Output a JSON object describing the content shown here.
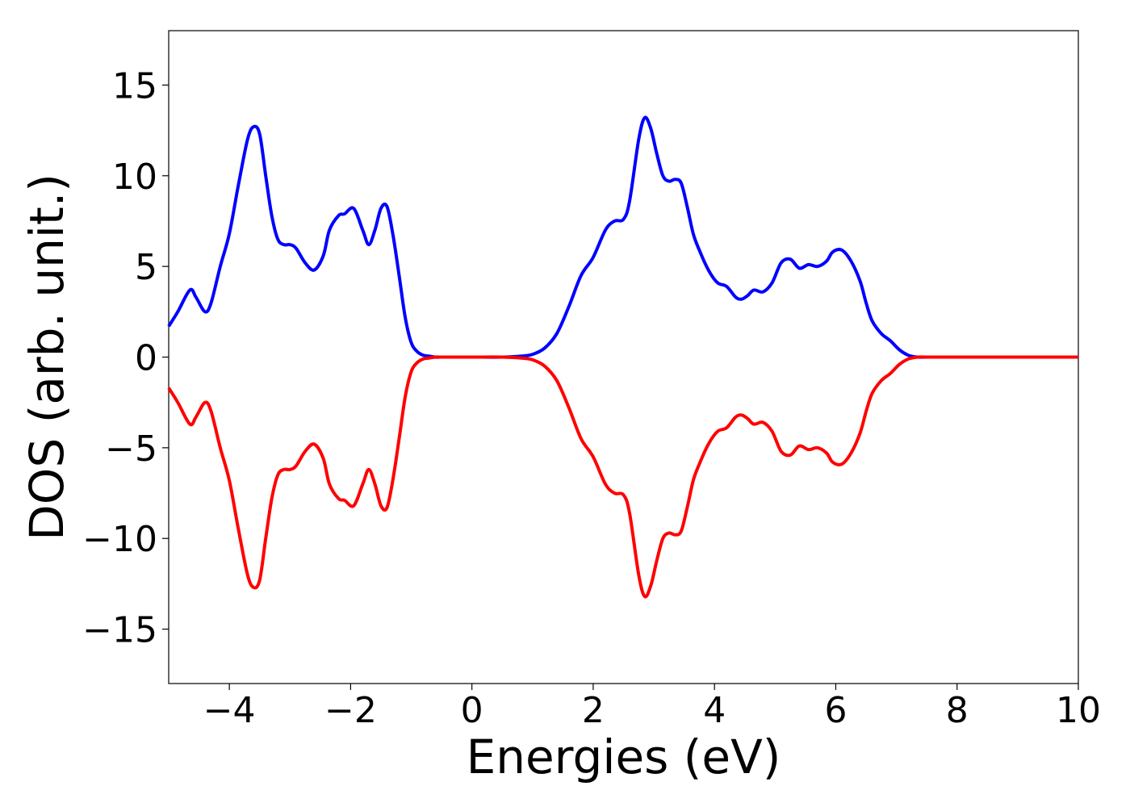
{
  "chart_data": {
    "type": "line",
    "title": "",
    "xlabel": "Energies (eV)",
    "ylabel": "DOS (arb. unit.)",
    "xlim": [
      -5,
      10
    ],
    "ylim": [
      -18,
      18
    ],
    "xticks": [
      -4,
      -2,
      0,
      2,
      4,
      6,
      8,
      10
    ],
    "xtick_labels": [
      "−4",
      "−2",
      "0",
      "2",
      "4",
      "6",
      "8",
      "10"
    ],
    "yticks": [
      -15,
      -10,
      -5,
      0,
      5,
      10,
      15
    ],
    "ytick_labels": [
      "−15",
      "−10",
      "−5",
      "0",
      "5",
      "10",
      "15"
    ],
    "grid": false,
    "legend": "none",
    "series": [
      {
        "color": "#0000ff",
        "x": [
          -5.0,
          -4.85,
          -4.65,
          -4.55,
          -4.4,
          -4.3,
          -4.15,
          -4.0,
          -3.85,
          -3.7,
          -3.6,
          -3.5,
          -3.4,
          -3.3,
          -3.2,
          -3.1,
          -3.0,
          -2.9,
          -2.75,
          -2.6,
          -2.45,
          -2.35,
          -2.2,
          -2.1,
          -1.95,
          -1.8,
          -1.7,
          -1.6,
          -1.5,
          -1.4,
          -1.3,
          -1.2,
          -1.1,
          -1.0,
          -0.9,
          -0.8,
          -0.7,
          -0.6,
          -0.5,
          0.0,
          0.5,
          0.8,
          1.0,
          1.2,
          1.4,
          1.6,
          1.8,
          2.0,
          2.2,
          2.35,
          2.5,
          2.6,
          2.75,
          2.85,
          2.95,
          3.05,
          3.15,
          3.25,
          3.35,
          3.45,
          3.55,
          3.65,
          3.75,
          3.9,
          4.05,
          4.2,
          4.35,
          4.45,
          4.55,
          4.65,
          4.8,
          4.95,
          5.1,
          5.25,
          5.4,
          5.55,
          5.7,
          5.85,
          5.95,
          6.1,
          6.25,
          6.4,
          6.5,
          6.6,
          6.75,
          6.9,
          7.05,
          7.2,
          7.35,
          7.5,
          8.0,
          9.0,
          10.0
        ],
        "y": [
          1.7,
          2.5,
          3.7,
          3.3,
          2.5,
          3.0,
          5.0,
          6.8,
          9.5,
          12.0,
          12.7,
          12.3,
          10.0,
          7.8,
          6.5,
          6.2,
          6.2,
          6.0,
          5.2,
          4.8,
          5.6,
          7.0,
          7.8,
          7.9,
          8.2,
          7.0,
          6.2,
          7.0,
          8.2,
          8.3,
          6.7,
          4.5,
          2.2,
          0.8,
          0.3,
          0.1,
          0.05,
          0.0,
          0.0,
          0.0,
          0.0,
          0.05,
          0.15,
          0.5,
          1.3,
          2.8,
          4.5,
          5.5,
          7.0,
          7.5,
          7.6,
          8.6,
          12.0,
          13.2,
          12.6,
          11.2,
          10.0,
          9.7,
          9.8,
          9.6,
          8.3,
          6.8,
          5.9,
          4.8,
          4.1,
          3.9,
          3.3,
          3.2,
          3.4,
          3.7,
          3.6,
          4.1,
          5.2,
          5.4,
          4.9,
          5.1,
          5.0,
          5.3,
          5.8,
          5.9,
          5.3,
          4.2,
          3.0,
          2.0,
          1.3,
          0.9,
          0.4,
          0.1,
          0.0,
          0.0,
          0.0,
          0.0,
          0.0
        ]
      },
      {
        "color": "#ff0000",
        "x": [
          -5.0,
          -4.85,
          -4.65,
          -4.55,
          -4.4,
          -4.3,
          -4.15,
          -4.0,
          -3.85,
          -3.7,
          -3.6,
          -3.5,
          -3.4,
          -3.3,
          -3.2,
          -3.1,
          -3.0,
          -2.9,
          -2.75,
          -2.6,
          -2.45,
          -2.35,
          -2.2,
          -2.1,
          -1.95,
          -1.8,
          -1.7,
          -1.6,
          -1.5,
          -1.4,
          -1.3,
          -1.2,
          -1.1,
          -1.0,
          -0.9,
          -0.8,
          -0.7,
          -0.6,
          -0.5,
          0.0,
          0.5,
          0.8,
          1.0,
          1.2,
          1.4,
          1.6,
          1.8,
          2.0,
          2.2,
          2.35,
          2.5,
          2.6,
          2.75,
          2.85,
          2.95,
          3.05,
          3.15,
          3.25,
          3.35,
          3.45,
          3.55,
          3.65,
          3.75,
          3.9,
          4.05,
          4.2,
          4.35,
          4.45,
          4.55,
          4.65,
          4.8,
          4.95,
          5.1,
          5.25,
          5.4,
          5.55,
          5.7,
          5.85,
          5.95,
          6.1,
          6.25,
          6.4,
          6.5,
          6.6,
          6.75,
          6.9,
          7.05,
          7.2,
          7.35,
          7.5,
          8.0,
          9.0,
          10.0
        ],
        "y": [
          -1.7,
          -2.5,
          -3.7,
          -3.3,
          -2.5,
          -3.0,
          -5.0,
          -6.8,
          -9.5,
          -12.0,
          -12.7,
          -12.3,
          -10.0,
          -7.8,
          -6.5,
          -6.2,
          -6.2,
          -6.0,
          -5.2,
          -4.8,
          -5.6,
          -7.0,
          -7.8,
          -7.9,
          -8.2,
          -7.0,
          -6.2,
          -7.0,
          -8.2,
          -8.3,
          -6.7,
          -4.5,
          -2.2,
          -0.8,
          -0.3,
          -0.1,
          -0.05,
          0.0,
          0.0,
          0.0,
          0.0,
          -0.05,
          -0.15,
          -0.5,
          -1.3,
          -2.8,
          -4.5,
          -5.5,
          -7.0,
          -7.5,
          -7.6,
          -8.6,
          -12.0,
          -13.2,
          -12.6,
          -11.2,
          -10.0,
          -9.7,
          -9.8,
          -9.6,
          -8.3,
          -6.8,
          -5.9,
          -4.8,
          -4.1,
          -3.9,
          -3.3,
          -3.2,
          -3.4,
          -3.7,
          -3.6,
          -4.1,
          -5.2,
          -5.4,
          -4.9,
          -5.1,
          -5.0,
          -5.3,
          -5.8,
          -5.9,
          -5.3,
          -4.2,
          -3.0,
          -2.0,
          -1.3,
          -0.9,
          -0.4,
          -0.1,
          0.0,
          0.0,
          0.0,
          0.0,
          0.0
        ]
      }
    ]
  }
}
